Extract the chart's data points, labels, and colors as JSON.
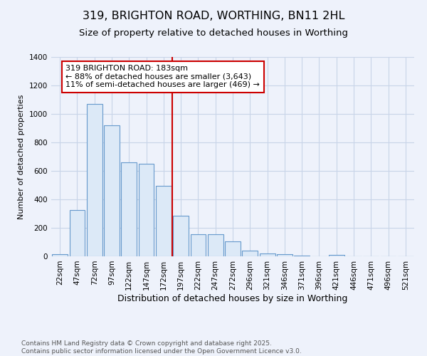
{
  "title": "319, BRIGHTON ROAD, WORTHING, BN11 2HL",
  "subtitle": "Size of property relative to detached houses in Worthing",
  "xlabel": "Distribution of detached houses by size in Worthing",
  "ylabel": "Number of detached properties",
  "categories": [
    "22sqm",
    "47sqm",
    "72sqm",
    "97sqm",
    "122sqm",
    "147sqm",
    "172sqm",
    "197sqm",
    "222sqm",
    "247sqm",
    "272sqm",
    "296sqm",
    "321sqm",
    "346sqm",
    "371sqm",
    "396sqm",
    "421sqm",
    "446sqm",
    "471sqm",
    "496sqm",
    "521sqm"
  ],
  "values": [
    15,
    325,
    1070,
    920,
    660,
    650,
    495,
    285,
    155,
    155,
    105,
    40,
    20,
    13,
    5,
    0,
    8,
    0,
    0,
    0,
    0
  ],
  "bar_color": "#dce9f7",
  "bar_edge_color": "#6699cc",
  "reference_line_color": "#cc0000",
  "annotation_text": "319 BRIGHTON ROAD: 183sqm\n← 88% of detached houses are smaller (3,643)\n11% of semi-detached houses are larger (469) →",
  "annotation_box_color": "#ffffff",
  "annotation_box_edge_color": "#cc0000",
  "ylim": [
    0,
    1400
  ],
  "yticks": [
    0,
    200,
    400,
    600,
    800,
    1000,
    1200,
    1400
  ],
  "background_color": "#eef2fb",
  "grid_color": "#c8d4e8",
  "footer_text": "Contains HM Land Registry data © Crown copyright and database right 2025.\nContains public sector information licensed under the Open Government Licence v3.0.",
  "title_fontsize": 11.5,
  "subtitle_fontsize": 9.5,
  "xlabel_fontsize": 9,
  "ylabel_fontsize": 8,
  "tick_fontsize": 7.5,
  "annotation_fontsize": 8,
  "footer_fontsize": 6.5
}
